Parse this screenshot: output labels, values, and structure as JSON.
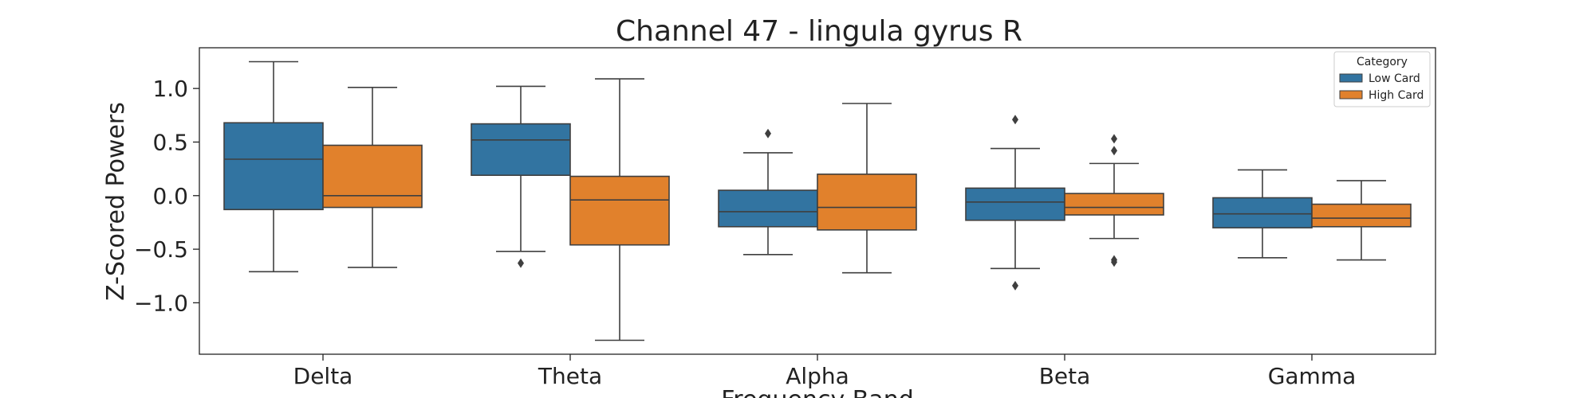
{
  "chart_data": {
    "type": "box",
    "title": "Channel 47 - lingula gyrus R",
    "xlabel": "Frequency Band",
    "ylabel": "Z-Scored Powers",
    "categories": [
      "Delta",
      "Theta",
      "Alpha",
      "Beta",
      "Gamma"
    ],
    "ylim": [
      -1.48,
      1.38
    ],
    "yticks": [
      1.0,
      0.5,
      0.0,
      -0.5,
      -1.0
    ],
    "ytick_labels": [
      "1.0",
      "0.5",
      "0.0",
      "−0.5",
      "−1.0"
    ],
    "grid": false,
    "legend": {
      "title": "Category",
      "placement": "top-right"
    },
    "series": [
      {
        "name": "Low Card",
        "color": "#3274a1",
        "boxes": [
          {
            "whislo": -0.71,
            "q1": -0.13,
            "med": 0.34,
            "q3": 0.68,
            "whishi": 1.25,
            "fliers": []
          },
          {
            "whislo": -0.52,
            "q1": 0.19,
            "med": 0.52,
            "q3": 0.67,
            "whishi": 1.02,
            "fliers": [
              -0.63
            ]
          },
          {
            "whislo": -0.55,
            "q1": -0.29,
            "med": -0.15,
            "q3": 0.05,
            "whishi": 0.4,
            "fliers": [
              0.58
            ]
          },
          {
            "whislo": -0.68,
            "q1": -0.23,
            "med": -0.06,
            "q3": 0.07,
            "whishi": 0.44,
            "fliers": [
              0.71,
              -0.84
            ]
          },
          {
            "whislo": -0.58,
            "q1": -0.3,
            "med": -0.17,
            "q3": -0.02,
            "whishi": 0.24,
            "fliers": []
          }
        ]
      },
      {
        "name": "High Card",
        "color": "#e1812c",
        "boxes": [
          {
            "whislo": -0.67,
            "q1": -0.11,
            "med": 0.0,
            "q3": 0.47,
            "whishi": 1.01,
            "fliers": []
          },
          {
            "whislo": -1.35,
            "q1": -0.46,
            "med": -0.04,
            "q3": 0.18,
            "whishi": 1.09,
            "fliers": []
          },
          {
            "whislo": -0.72,
            "q1": -0.32,
            "med": -0.11,
            "q3": 0.2,
            "whishi": 0.86,
            "fliers": []
          },
          {
            "whislo": -0.4,
            "q1": -0.18,
            "med": -0.11,
            "q3": 0.02,
            "whishi": 0.3,
            "fliers": [
              0.53,
              0.42,
              -0.6,
              -0.62
            ]
          },
          {
            "whislo": -0.6,
            "q1": -0.29,
            "med": -0.21,
            "q3": -0.08,
            "whishi": 0.14,
            "fliers": []
          }
        ]
      }
    ]
  }
}
